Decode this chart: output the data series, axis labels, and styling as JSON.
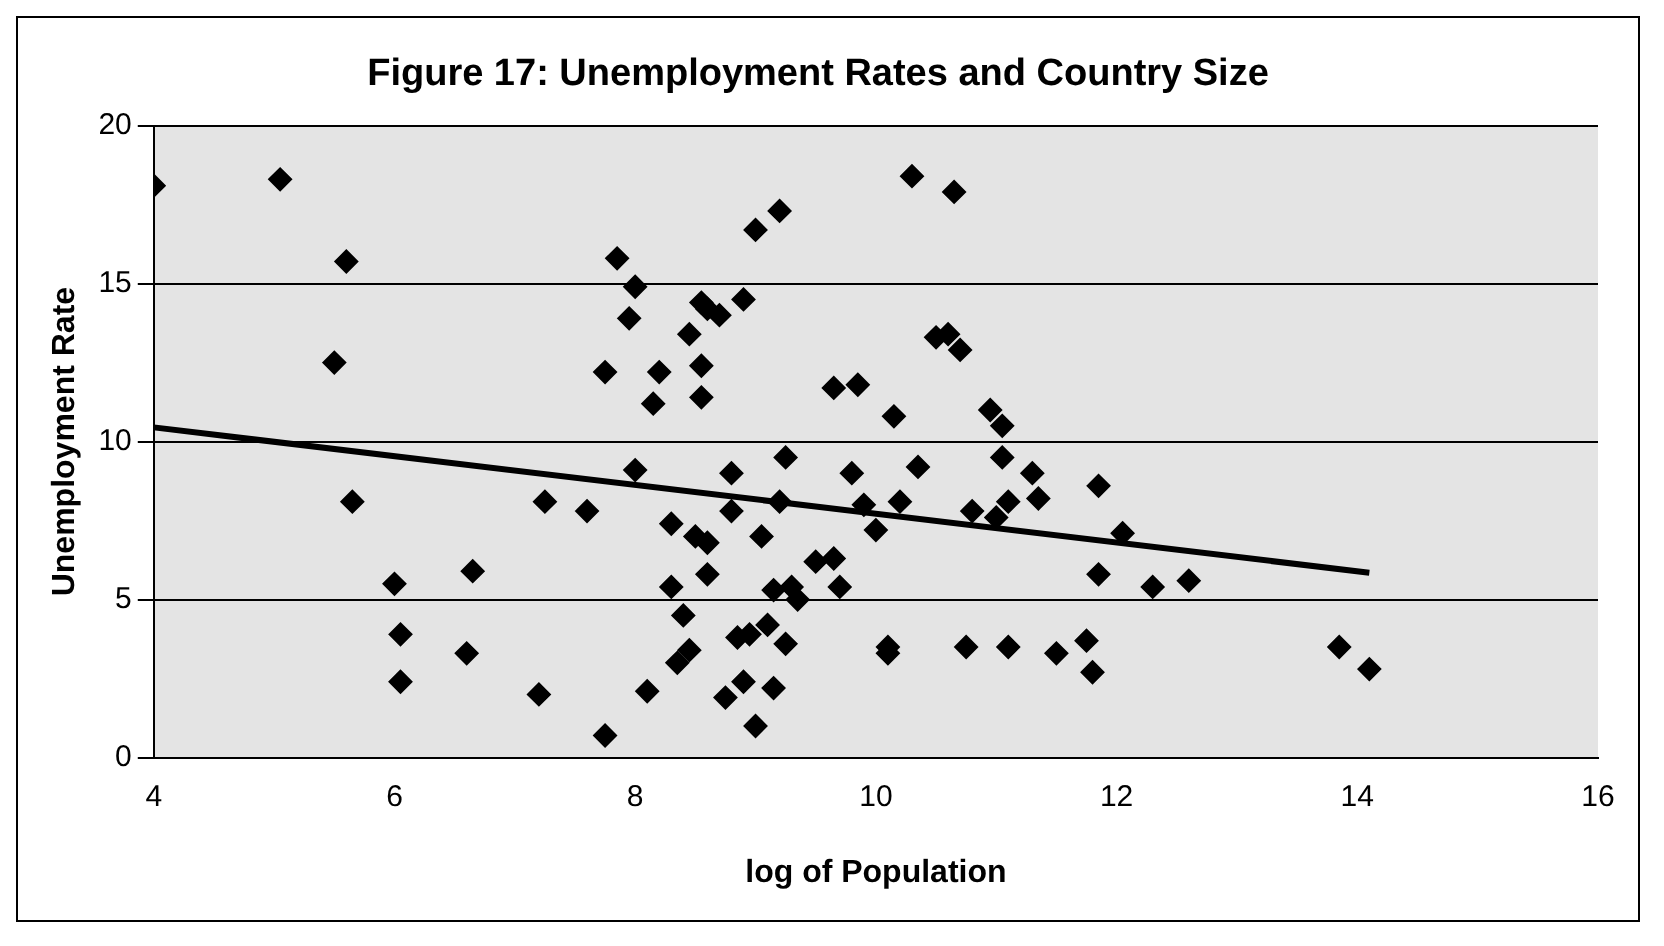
{
  "chart_data": {
    "type": "scatter",
    "title": "Figure 17: Unemployment Rates and Country Size",
    "xlabel": "log of Population",
    "ylabel": "Unemployment Rate",
    "xlim": [
      4,
      16
    ],
    "xticks": [
      4,
      6,
      8,
      10,
      12,
      14,
      16
    ],
    "ylim": [
      0,
      20
    ],
    "yticks": [
      0,
      5,
      10,
      15,
      20
    ],
    "grid": "y",
    "legend": false,
    "marker": "diamond",
    "series": [
      {
        "color": "#000000",
        "x": [
          4.0,
          5.05,
          5.6,
          5.5,
          5.65,
          6.0,
          6.05,
          6.05,
          6.65,
          6.6,
          7.2,
          7.25,
          7.6,
          7.75,
          7.75,
          7.85,
          8.0,
          7.95,
          8.0,
          8.1,
          8.15,
          8.2,
          8.3,
          8.3,
          8.35,
          8.4,
          8.45,
          8.45,
          8.5,
          8.55,
          8.6,
          8.55,
          8.55,
          8.6,
          8.6,
          8.7,
          8.75,
          8.8,
          8.8,
          8.85,
          8.9,
          8.9,
          8.95,
          9.0,
          9.0,
          9.05,
          9.1,
          9.15,
          9.15,
          9.2,
          9.2,
          9.25,
          9.25,
          9.3,
          9.35,
          9.5,
          9.65,
          9.65,
          9.7,
          9.8,
          9.85,
          9.9,
          10.0,
          10.1,
          10.1,
          10.15,
          10.2,
          10.3,
          10.35,
          10.5,
          10.6,
          10.65,
          10.7,
          10.75,
          10.8,
          10.95,
          11.0,
          11.05,
          11.1,
          11.05,
          11.1,
          11.3,
          11.35,
          11.5,
          11.75,
          11.8,
          11.85,
          11.85,
          12.05,
          12.3,
          12.6,
          13.85,
          14.1
        ],
        "values": [
          18.1,
          18.3,
          15.7,
          12.5,
          8.1,
          5.5,
          3.9,
          2.4,
          5.9,
          3.3,
          2.0,
          8.1,
          7.8,
          12.2,
          0.7,
          15.8,
          14.9,
          13.9,
          9.1,
          2.1,
          11.2,
          12.2,
          7.4,
          5.4,
          3.0,
          4.5,
          3.4,
          13.4,
          7.0,
          14.4,
          14.2,
          12.4,
          11.4,
          6.8,
          5.8,
          14.0,
          1.9,
          9.0,
          7.8,
          3.8,
          14.5,
          2.4,
          3.9,
          1.0,
          16.7,
          7.0,
          4.2,
          5.3,
          2.2,
          17.3,
          8.1,
          9.5,
          3.6,
          5.4,
          5.0,
          6.2,
          6.3,
          11.7,
          5.4,
          9.0,
          11.8,
          8.0,
          7.2,
          3.3,
          3.5,
          10.8,
          8.1,
          18.4,
          9.2,
          13.3,
          13.4,
          17.9,
          12.9,
          3.5,
          7.8,
          11.0,
          7.6,
          10.5,
          3.5,
          9.5,
          8.1,
          9.0,
          8.2,
          3.3,
          3.7,
          2.7,
          5.8,
          8.6,
          7.1,
          5.4,
          5.6,
          3.5,
          2.8
        ]
      },
      {
        "type": "line",
        "marker": "none",
        "color": "#000000",
        "x": [
          4,
          14.1
        ],
        "values": [
          10.45,
          5.85
        ]
      }
    ]
  }
}
